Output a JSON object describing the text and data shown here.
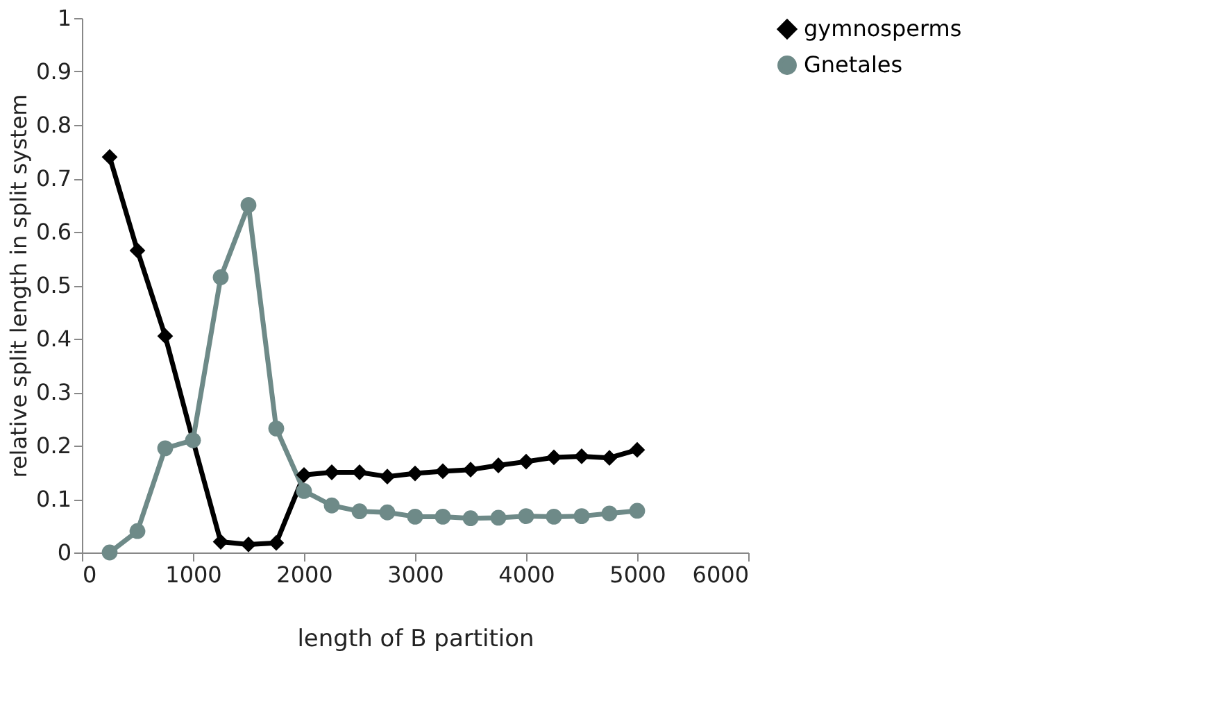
{
  "chart_data": {
    "type": "line",
    "xlabel": "length of B partition",
    "ylabel": "relative split length in split system",
    "x": [
      250,
      500,
      750,
      1000,
      1250,
      1500,
      1750,
      2000,
      2250,
      2500,
      2750,
      3000,
      3250,
      3500,
      3750,
      4000,
      4250,
      4500,
      4750,
      5000
    ],
    "series": [
      {
        "name": "gymnosperms",
        "color": "#000000",
        "marker": "diamond",
        "values": [
          0.74,
          0.565,
          0.405,
          0.21,
          0.02,
          0.015,
          0.018,
          0.145,
          0.15,
          0.15,
          0.142,
          0.148,
          0.152,
          0.155,
          0.163,
          0.17,
          0.178,
          0.18,
          0.177,
          0.192
        ]
      },
      {
        "name": "Gnetales",
        "color": "#6e8a88",
        "marker": "circle",
        "values": [
          0,
          0.04,
          0.195,
          0.21,
          0.515,
          0.65,
          0.232,
          0.115,
          0.088,
          0.077,
          0.075,
          0.067,
          0.067,
          0.064,
          0.065,
          0.068,
          0.067,
          0.068,
          0.073,
          0.078
        ]
      }
    ],
    "xlim": [
      0,
      6000
    ],
    "xticks": [
      0,
      1000,
      2000,
      3000,
      4000,
      5000,
      6000
    ],
    "ylim": [
      0,
      1
    ],
    "yticks": [
      0,
      0.1,
      0.2,
      0.3,
      0.4,
      0.5,
      0.6,
      0.7,
      0.8,
      0.9,
      1
    ],
    "grid": false,
    "legend": "right",
    "line_style": "solid"
  }
}
